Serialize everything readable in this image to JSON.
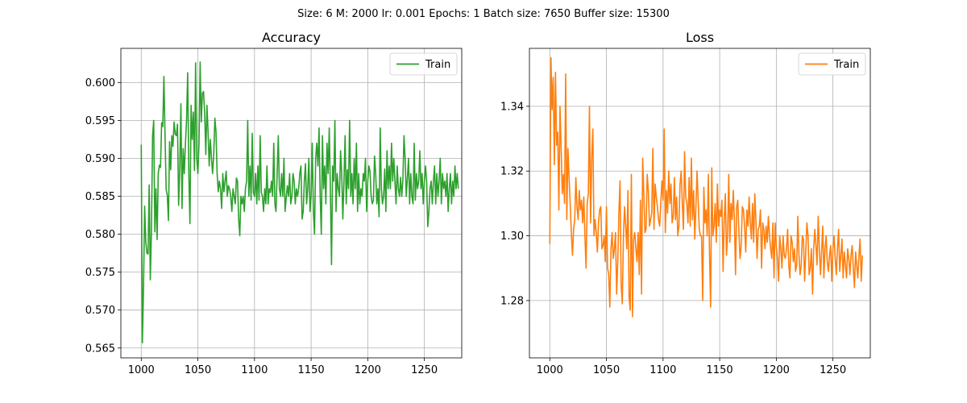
{
  "figure": {
    "suptitle": "Size: 6   M: 2000   lr: 0.001   Epochs: 1   Batch size: 7650   Buffer size: 15300"
  },
  "chart_data": [
    {
      "type": "line",
      "title": "Accuracy",
      "xlabel": "",
      "ylabel": "",
      "xlim": [
        982,
        1283
      ],
      "ylim": [
        0.5637,
        0.6045
      ],
      "xticks": [
        1000,
        1050,
        1100,
        1150,
        1200,
        1250
      ],
      "yticks": [
        0.565,
        0.57,
        0.575,
        0.58,
        0.585,
        0.59,
        0.595,
        0.6
      ],
      "ytick_decimals": 3,
      "grid": true,
      "legend": "top-right",
      "series": [
        {
          "name": "Train",
          "color": "#2ca02c",
          "x_start": 1000,
          "x_step": 1,
          "values": [
            0.5918,
            0.5657,
            0.573,
            0.5837,
            0.579,
            0.5775,
            0.5774,
            0.5865,
            0.574,
            0.5805,
            0.593,
            0.595,
            0.5803,
            0.586,
            0.5793,
            0.588,
            0.5891,
            0.5888,
            0.5947,
            0.5942,
            0.6008,
            0.593,
            0.5859,
            0.5851,
            0.5818,
            0.5922,
            0.5885,
            0.593,
            0.5916,
            0.5948,
            0.5932,
            0.593,
            0.5945,
            0.5838,
            0.5886,
            0.5972,
            0.5834,
            0.5913,
            0.588,
            0.5919,
            0.595,
            0.6013,
            0.588,
            0.5814,
            0.597,
            0.5925,
            0.5961,
            0.5884,
            0.6026,
            0.59,
            0.588,
            0.592,
            0.6027,
            0.5948,
            0.5986,
            0.5988,
            0.596,
            0.5905,
            0.597,
            0.5935,
            0.589,
            0.5925,
            0.59,
            0.588,
            0.5905,
            0.5953,
            0.5935,
            0.588,
            0.5856,
            0.587,
            0.586,
            0.5834,
            0.588,
            0.5856,
            0.587,
            0.5883,
            0.585,
            0.5864,
            0.586,
            0.585,
            0.583,
            0.586,
            0.585,
            0.584,
            0.5874,
            0.587,
            0.582,
            0.5798,
            0.585,
            0.584,
            0.585,
            0.583,
            0.586,
            0.587,
            0.595,
            0.585,
            0.589,
            0.5845,
            0.5933,
            0.5855,
            0.585,
            0.588,
            0.584,
            0.589,
            0.5845,
            0.593,
            0.5855,
            0.585,
            0.583,
            0.586,
            0.584,
            0.589,
            0.584,
            0.586,
            0.5855,
            0.587,
            0.585,
            0.592,
            0.584,
            0.583,
            0.588,
            0.593,
            0.586,
            0.585,
            0.588,
            0.585,
            0.59,
            0.583,
            0.5848,
            0.5864,
            0.585,
            0.588,
            0.584,
            0.585,
            0.588,
            0.587,
            0.584,
            0.586,
            0.585,
            0.586,
            0.588,
            0.589,
            0.582,
            0.583,
            0.587,
            0.5893,
            0.584,
            0.586,
            0.59,
            0.583,
            0.585,
            0.592,
            0.583,
            0.58,
            0.59,
            0.592,
            0.589,
            0.594,
            0.585,
            0.58,
            0.593,
            0.586,
            0.589,
            0.584,
            0.592,
            0.588,
            0.594,
            0.586,
            0.576,
            0.589,
            0.587,
            0.595,
            0.583,
            0.588,
            0.586,
            0.585,
            0.591,
            0.588,
            0.582,
            0.587,
            0.593,
            0.584,
            0.5885,
            0.586,
            0.595,
            0.585,
            0.588,
            0.584,
            0.59,
            0.586,
            0.592,
            0.583,
            0.588,
            0.584,
            0.586,
            0.585,
            0.588,
            0.587,
            0.59,
            0.583,
            0.587,
            0.589,
            0.5883,
            0.585,
            0.584,
            0.5845,
            0.5903,
            0.588,
            0.584,
            0.586,
            0.5823,
            0.594,
            0.586,
            0.584,
            0.585,
            0.5886,
            0.583,
            0.591,
            0.586,
            0.589,
            0.586,
            0.592,
            0.587,
            0.59,
            0.587,
            0.584,
            0.589,
            0.586,
            0.585,
            0.5875,
            0.585,
            0.587,
            0.593,
            0.59,
            0.585,
            0.5874,
            0.59,
            0.584,
            0.588,
            0.585,
            0.584,
            0.592,
            0.5845,
            0.588,
            0.586,
            0.587,
            0.591,
            0.586,
            0.588,
            0.584,
            0.587,
            0.589,
            0.587,
            0.581,
            0.583,
            0.586,
            0.587,
            0.584,
            0.587,
            0.589,
            0.584,
            0.588,
            0.585,
            0.587,
            0.59,
            0.584,
            0.588,
            0.586,
            0.587,
            0.585,
            0.588,
            0.583,
            0.586,
            0.588,
            0.584,
            0.587,
            0.585,
            0.589,
            0.586,
            0.588,
            0.586
          ]
        }
      ]
    },
    {
      "type": "line",
      "title": "Loss",
      "xlabel": "",
      "ylabel": "",
      "xlim": [
        982,
        1283
      ],
      "ylim": [
        1.2623,
        1.3579
      ],
      "xticks": [
        1000,
        1050,
        1100,
        1150,
        1200,
        1250
      ],
      "yticks": [
        1.28,
        1.3,
        1.32,
        1.34
      ],
      "ytick_decimals": 2,
      "grid": true,
      "legend": "top-right",
      "series": [
        {
          "name": "Train",
          "color": "#ff7f0e",
          "x_start": 1000,
          "x_step": 1,
          "values": [
            1.2975,
            1.355,
            1.339,
            1.349,
            1.322,
            1.3505,
            1.328,
            1.332,
            1.308,
            1.34,
            1.327,
            1.313,
            1.319,
            1.31,
            1.35,
            1.305,
            1.327,
            1.318,
            1.31,
            1.301,
            1.294,
            1.302,
            1.305,
            1.318,
            1.309,
            1.305,
            1.314,
            1.308,
            1.311,
            1.304,
            1.312,
            1.3,
            1.29,
            1.31,
            1.313,
            1.34,
            1.304,
            1.324,
            1.333,
            1.3,
            1.305,
            1.301,
            1.295,
            1.304,
            1.308,
            1.309,
            1.296,
            1.297,
            1.3,
            1.292,
            1.309,
            1.29,
            1.288,
            1.278,
            1.296,
            1.301,
            1.293,
            1.296,
            1.301,
            1.282,
            1.292,
            1.307,
            1.317,
            1.285,
            1.279,
            1.3,
            1.309,
            1.303,
            1.296,
            1.314,
            1.281,
            1.277,
            1.319,
            1.275,
            1.299,
            1.301,
            1.296,
            1.292,
            1.301,
            1.288,
            1.311,
            1.282,
            1.324,
            1.313,
            1.301,
            1.302,
            1.319,
            1.314,
            1.303,
            1.305,
            1.307,
            1.327,
            1.302,
            1.316,
            1.312,
            1.309,
            1.305,
            1.303,
            1.31,
            1.317,
            1.311,
            1.333,
            1.301,
            1.314,
            1.307,
            1.32,
            1.31,
            1.316,
            1.304,
            1.306,
            1.318,
            1.305,
            1.312,
            1.3,
            1.303,
            1.316,
            1.32,
            1.31,
            1.302,
            1.326,
            1.312,
            1.31,
            1.304,
            1.318,
            1.303,
            1.324,
            1.305,
            1.314,
            1.299,
            1.309,
            1.32,
            1.311,
            1.302,
            1.3,
            1.3,
            1.28,
            1.315,
            1.304,
            1.308,
            1.3,
            1.319,
            1.295,
            1.278,
            1.321,
            1.3,
            1.303,
            1.31,
            1.298,
            1.316,
            1.303,
            1.308,
            1.306,
            1.311,
            1.289,
            1.305,
            1.313,
            1.294,
            1.3,
            1.319,
            1.298,
            1.31,
            1.305,
            1.314,
            1.305,
            1.288,
            1.309,
            1.311,
            1.301,
            1.293,
            1.297,
            1.309,
            1.308,
            1.303,
            1.295,
            1.308,
            1.303,
            1.312,
            1.304,
            1.299,
            1.31,
            1.298,
            1.313,
            1.305,
            1.293,
            1.302,
            1.303,
            1.308,
            1.29,
            1.304,
            1.302,
            1.296,
            1.303,
            1.298,
            1.306,
            1.3,
            1.296,
            1.293,
            1.304,
            1.287,
            1.304,
            1.297,
            1.293,
            1.286,
            1.3,
            1.296,
            1.29,
            1.3,
            1.294,
            1.293,
            1.296,
            1.302,
            1.291,
            1.287,
            1.3,
            1.298,
            1.292,
            1.296,
            1.289,
            1.291,
            1.306,
            1.294,
            1.288,
            1.291,
            1.3,
            1.299,
            1.286,
            1.295,
            1.304,
            1.3,
            1.288,
            1.29,
            1.296,
            1.282,
            1.296,
            1.302,
            1.297,
            1.291,
            1.306,
            1.296,
            1.288,
            1.295,
            1.303,
            1.287,
            1.296,
            1.3,
            1.292,
            1.289,
            1.294,
            1.297,
            1.286,
            1.296,
            1.3,
            1.293,
            1.288,
            1.296,
            1.302,
            1.289,
            1.294,
            1.299,
            1.287,
            1.295,
            1.291,
            1.287,
            1.296,
            1.293,
            1.288,
            1.294,
            1.297,
            1.29,
            1.284,
            1.295,
            1.291,
            1.287,
            1.294,
            1.299,
            1.286,
            1.294
          ]
        }
      ]
    }
  ]
}
